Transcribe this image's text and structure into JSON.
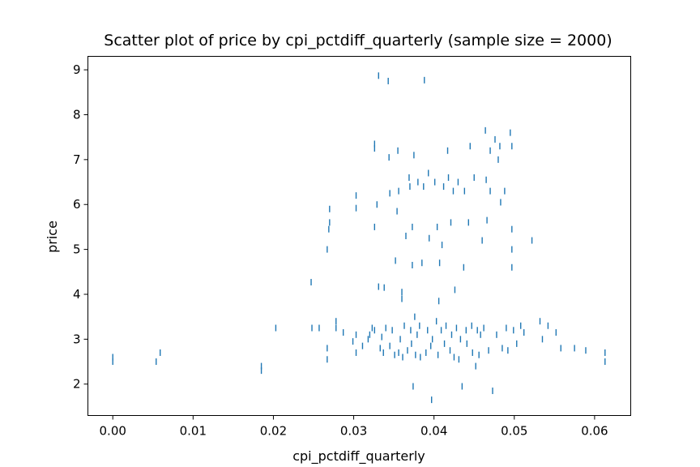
{
  "chart_data": {
    "type": "scatter",
    "title": "Scatter plot of price by cpi_pctdiff_quarterly (sample size = 2000)",
    "xlabel": "cpi_pctdiff_quarterly",
    "ylabel": "price",
    "xlim": [
      -0.0031,
      0.0645
    ],
    "ylim": [
      1.3,
      9.3
    ],
    "xticks": [
      0.0,
      0.01,
      0.02,
      0.03,
      0.04,
      0.05,
      0.06
    ],
    "xtick_labels": [
      "0.00",
      "0.01",
      "0.02",
      "0.03",
      "0.04",
      "0.05",
      "0.06"
    ],
    "yticks": [
      2,
      3,
      4,
      5,
      6,
      7,
      8,
      9
    ],
    "ytick_labels": [
      "2",
      "3",
      "4",
      "5",
      "6",
      "7",
      "8",
      "9"
    ],
    "grid": false,
    "marker_color": "#1f77b4",
    "points": [
      [
        0.0,
        2.5
      ],
      [
        0.0,
        2.6
      ],
      [
        0.0054,
        2.5
      ],
      [
        0.0059,
        2.7
      ],
      [
        0.0185,
        2.3
      ],
      [
        0.0185,
        2.4
      ],
      [
        0.0203,
        3.25
      ],
      [
        0.0247,
        4.27
      ],
      [
        0.0248,
        3.25
      ],
      [
        0.0257,
        3.25
      ],
      [
        0.0267,
        2.55
      ],
      [
        0.0267,
        2.8
      ],
      [
        0.0267,
        5.0
      ],
      [
        0.0269,
        5.45
      ],
      [
        0.027,
        5.6
      ],
      [
        0.027,
        5.9
      ],
      [
        0.0278,
        3.4
      ],
      [
        0.0278,
        3.25
      ],
      [
        0.0287,
        3.15
      ],
      [
        0.0299,
        2.95
      ],
      [
        0.0303,
        6.2
      ],
      [
        0.0303,
        5.92
      ],
      [
        0.0303,
        2.7
      ],
      [
        0.0303,
        3.1
      ],
      [
        0.0311,
        2.85
      ],
      [
        0.0318,
        3.0
      ],
      [
        0.032,
        3.1
      ],
      [
        0.0323,
        3.25
      ],
      [
        0.0326,
        7.25
      ],
      [
        0.0326,
        7.35
      ],
      [
        0.0326,
        5.5
      ],
      [
        0.0326,
        3.2
      ],
      [
        0.0329,
        6.0
      ],
      [
        0.0331,
        8.87
      ],
      [
        0.0331,
        4.17
      ],
      [
        0.0333,
        2.8
      ],
      [
        0.0335,
        3.05
      ],
      [
        0.0337,
        2.7
      ],
      [
        0.0338,
        4.15
      ],
      [
        0.034,
        3.25
      ],
      [
        0.0343,
        8.75
      ],
      [
        0.0344,
        7.05
      ],
      [
        0.0345,
        6.25
      ],
      [
        0.0345,
        2.85
      ],
      [
        0.0348,
        3.2
      ],
      [
        0.0351,
        2.65
      ],
      [
        0.0352,
        4.75
      ],
      [
        0.0354,
        5.85
      ],
      [
        0.0355,
        7.2
      ],
      [
        0.0356,
        6.3
      ],
      [
        0.0356,
        2.7
      ],
      [
        0.0358,
        3.0
      ],
      [
        0.036,
        3.9
      ],
      [
        0.036,
        4.05
      ],
      [
        0.0361,
        2.6
      ],
      [
        0.0363,
        3.3
      ],
      [
        0.0365,
        5.3
      ],
      [
        0.0367,
        2.75
      ],
      [
        0.0369,
        6.6
      ],
      [
        0.037,
        6.4
      ],
      [
        0.0371,
        3.2
      ],
      [
        0.0372,
        2.9
      ],
      [
        0.0373,
        5.5
      ],
      [
        0.0373,
        4.65
      ],
      [
        0.0374,
        1.95
      ],
      [
        0.0375,
        7.1
      ],
      [
        0.0376,
        3.5
      ],
      [
        0.0377,
        2.65
      ],
      [
        0.0379,
        3.1
      ],
      [
        0.038,
        6.5
      ],
      [
        0.0382,
        3.3
      ],
      [
        0.0383,
        2.6
      ],
      [
        0.0385,
        4.7
      ],
      [
        0.0387,
        6.4
      ],
      [
        0.0388,
        8.77
      ],
      [
        0.039,
        2.7
      ],
      [
        0.0392,
        3.2
      ],
      [
        0.0393,
        6.7
      ],
      [
        0.0394,
        5.25
      ],
      [
        0.0396,
        2.85
      ],
      [
        0.0397,
        1.65
      ],
      [
        0.0398,
        3.0
      ],
      [
        0.0401,
        6.5
      ],
      [
        0.0403,
        3.4
      ],
      [
        0.0404,
        5.5
      ],
      [
        0.0405,
        2.65
      ],
      [
        0.0406,
        3.85
      ],
      [
        0.0407,
        4.7
      ],
      [
        0.0409,
        3.2
      ],
      [
        0.041,
        5.1
      ],
      [
        0.0412,
        6.4
      ],
      [
        0.0413,
        2.9
      ],
      [
        0.0415,
        3.3
      ],
      [
        0.0417,
        7.2
      ],
      [
        0.0418,
        6.6
      ],
      [
        0.042,
        2.75
      ],
      [
        0.0421,
        5.6
      ],
      [
        0.0422,
        3.1
      ],
      [
        0.0424,
        6.3
      ],
      [
        0.0425,
        2.6
      ],
      [
        0.0426,
        4.1
      ],
      [
        0.0428,
        3.25
      ],
      [
        0.043,
        6.5
      ],
      [
        0.0431,
        2.55
      ],
      [
        0.0433,
        3.0
      ],
      [
        0.0435,
        1.95
      ],
      [
        0.0437,
        4.6
      ],
      [
        0.0438,
        6.3
      ],
      [
        0.044,
        3.2
      ],
      [
        0.0441,
        2.9
      ],
      [
        0.0443,
        5.6
      ],
      [
        0.0445,
        7.3
      ],
      [
        0.0447,
        3.3
      ],
      [
        0.0448,
        2.7
      ],
      [
        0.045,
        6.6
      ],
      [
        0.0452,
        2.4
      ],
      [
        0.0454,
        3.2
      ],
      [
        0.0456,
        2.65
      ],
      [
        0.0458,
        3.1
      ],
      [
        0.046,
        5.2
      ],
      [
        0.0462,
        3.25
      ],
      [
        0.0464,
        7.65
      ],
      [
        0.0465,
        6.55
      ],
      [
        0.0466,
        5.65
      ],
      [
        0.0468,
        2.75
      ],
      [
        0.047,
        7.2
      ],
      [
        0.047,
        6.3
      ],
      [
        0.0473,
        1.85
      ],
      [
        0.0476,
        7.45
      ],
      [
        0.0478,
        3.1
      ],
      [
        0.048,
        7.0
      ],
      [
        0.0482,
        7.3
      ],
      [
        0.0483,
        6.05
      ],
      [
        0.0485,
        2.8
      ],
      [
        0.0488,
        6.3
      ],
      [
        0.049,
        3.25
      ],
      [
        0.0492,
        2.75
      ],
      [
        0.0495,
        7.6
      ],
      [
        0.0497,
        7.3
      ],
      [
        0.0497,
        5.45
      ],
      [
        0.0497,
        5.0
      ],
      [
        0.0497,
        4.6
      ],
      [
        0.0499,
        3.2
      ],
      [
        0.0503,
        2.9
      ],
      [
        0.0508,
        3.3
      ],
      [
        0.0512,
        3.15
      ],
      [
        0.0522,
        5.2
      ],
      [
        0.0532,
        3.4
      ],
      [
        0.0535,
        3.0
      ],
      [
        0.0542,
        3.3
      ],
      [
        0.0552,
        3.15
      ],
      [
        0.0558,
        2.8
      ],
      [
        0.0575,
        2.8
      ],
      [
        0.0589,
        2.75
      ],
      [
        0.0613,
        2.5
      ],
      [
        0.0613,
        2.7
      ]
    ]
  }
}
